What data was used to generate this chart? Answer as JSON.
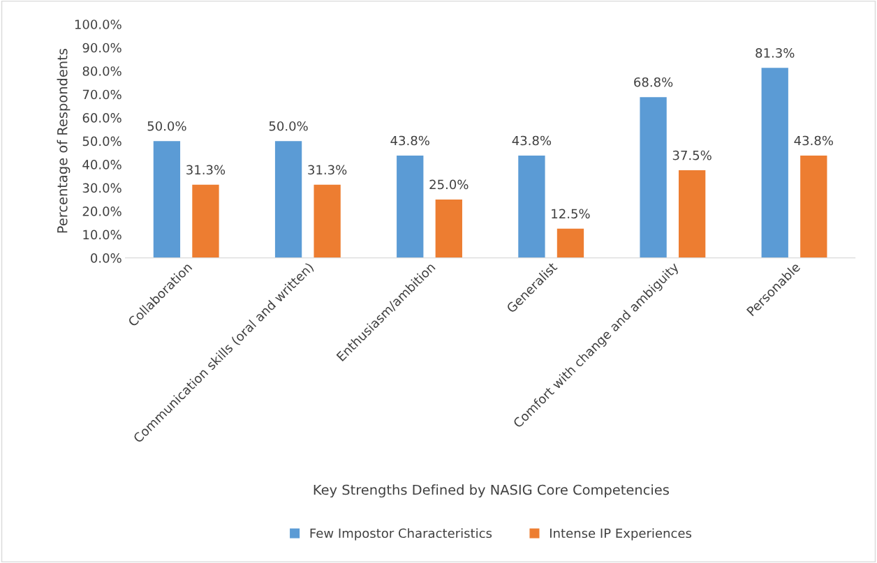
{
  "chart_data": {
    "type": "bar",
    "xlabel": "Key Strengths Defined by NASIG Core Competencies",
    "ylabel": "Percentage of Respondents",
    "categories": [
      "Collaboration",
      "Communication skills (oral and written)",
      "Enthusiasm/ambition",
      "Generalist",
      "Comfort with change and ambiguity",
      "Personable"
    ],
    "series": [
      {
        "name": "Few Impostor Characteristics",
        "color": "#5b9bd5",
        "values": [
          50.0,
          50.0,
          43.8,
          43.8,
          68.8,
          81.3
        ],
        "value_labels": [
          "50.0%",
          "50.0%",
          "43.8%",
          "43.8%",
          "68.8%",
          "81.3%"
        ]
      },
      {
        "name": "Intense IP Experiences",
        "color": "#ed7d31",
        "values": [
          31.3,
          31.3,
          25.0,
          12.5,
          37.5,
          43.8
        ],
        "value_labels": [
          "31.3%",
          "31.3%",
          "25.0%",
          "12.5%",
          "37.5%",
          "43.8%"
        ]
      }
    ],
    "ylim": [
      0,
      100
    ],
    "yticks": [
      {
        "value": 0,
        "label": "0.0%"
      },
      {
        "value": 10,
        "label": "10.0%"
      },
      {
        "value": 20,
        "label": "20.0%"
      },
      {
        "value": 30,
        "label": "30.0%"
      },
      {
        "value": 40,
        "label": "40.0%"
      },
      {
        "value": 50,
        "label": "50.0%"
      },
      {
        "value": 60,
        "label": "60.0%"
      },
      {
        "value": 70,
        "label": "70.0%"
      },
      {
        "value": 80,
        "label": "80.0%"
      },
      {
        "value": 90,
        "label": "90.0%"
      },
      {
        "value": 100,
        "label": "100.0%"
      }
    ],
    "grid": false,
    "legend": "bottom"
  }
}
